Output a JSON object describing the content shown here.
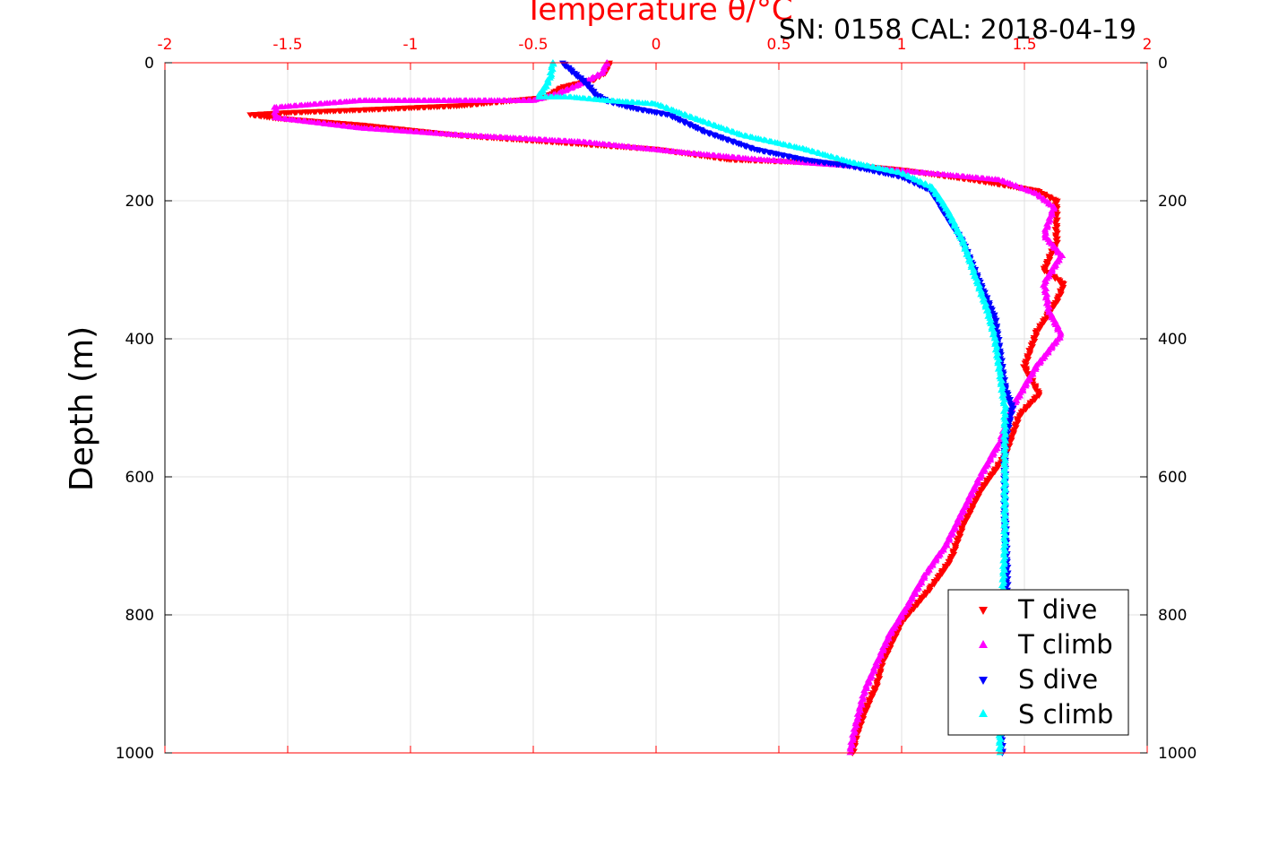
{
  "chart_data": {
    "type": "scatter",
    "title": "SN: 0158  CAL: 2018-04-19",
    "xlabel_top": "Temperature θ/°C",
    "ylabel": "Depth (m)",
    "xlim": [
      -2,
      2
    ],
    "ylim": [
      0,
      1000
    ],
    "y_reversed": true,
    "x_axis_location": "top",
    "x_ticks": [
      "-2",
      "-1.5",
      "-1",
      "-0.5",
      "0",
      "0.5",
      "1",
      "1.5",
      "2"
    ],
    "y_ticks": [
      "0",
      "200",
      "400",
      "600",
      "800",
      "1000"
    ],
    "grid": true,
    "legend_location": "bottom-right",
    "colors": {
      "axis_top": "#ff0000",
      "axis": "#000000",
      "grid": "#e0e0e0"
    },
    "legend": [
      "T dive",
      "T climb",
      "S dive",
      "S climb"
    ],
    "series": [
      {
        "name": "T dive",
        "color": "#ff0000",
        "marker": "triangle-down",
        "x": [
          -0.19,
          -0.21,
          -0.26,
          -0.38,
          -0.45,
          -0.8,
          -1.2,
          -1.5,
          -1.65,
          -1.55,
          -1.2,
          -0.8,
          -0.4,
          0.0,
          0.3,
          0.7,
          1.0,
          1.3,
          1.55,
          1.63,
          1.63,
          1.58,
          1.66,
          1.64,
          1.55,
          1.5,
          1.56,
          1.48,
          1.42,
          1.32,
          1.25,
          1.2,
          1.12,
          1.0,
          0.92,
          0.9,
          0.85,
          0.82,
          0.8
        ],
        "y": [
          0,
          15,
          25,
          35,
          50,
          62,
          68,
          72,
          75,
          80,
          90,
          105,
          115,
          125,
          140,
          145,
          155,
          170,
          185,
          200,
          260,
          300,
          320,
          340,
          390,
          440,
          480,
          510,
          570,
          620,
          670,
          720,
          760,
          810,
          870,
          900,
          940,
          970,
          1000
        ]
      },
      {
        "name": "T climb",
        "color": "#ff00ff",
        "marker": "triangle-up",
        "x": [
          -0.2,
          -0.22,
          -0.3,
          -0.4,
          -0.5,
          -0.8,
          -1.2,
          -1.55,
          -1.55,
          -1.2,
          -0.8,
          -0.3,
          0.1,
          0.4,
          0.8,
          1.1,
          1.4,
          1.55,
          1.62,
          1.58,
          1.65,
          1.58,
          1.6,
          1.65,
          1.55,
          1.45,
          1.4,
          1.32,
          1.25,
          1.18,
          1.1,
          1.02,
          0.95,
          0.9,
          0.85,
          0.82,
          0.8,
          0.79
        ],
        "y": [
          0,
          15,
          30,
          45,
          55,
          55,
          55,
          65,
          80,
          95,
          105,
          115,
          130,
          140,
          150,
          160,
          170,
          190,
          210,
          250,
          280,
          320,
          360,
          395,
          440,
          500,
          550,
          600,
          650,
          700,
          740,
          790,
          830,
          870,
          910,
          950,
          980,
          1000
        ]
      },
      {
        "name": "S dive",
        "color": "#0000ff",
        "marker": "triangle-down",
        "x": [
          -0.38,
          -0.35,
          -0.3,
          -0.27,
          -0.25,
          -0.2,
          -0.1,
          0.05,
          0.2,
          0.4,
          0.6,
          0.8,
          1.0,
          1.12,
          1.18,
          1.25,
          1.32,
          1.38,
          1.4,
          1.42,
          1.45,
          1.42,
          1.42,
          1.43,
          1.42,
          1.41,
          1.4,
          1.41
        ],
        "y": [
          0,
          10,
          25,
          35,
          45,
          55,
          65,
          75,
          100,
          125,
          140,
          150,
          165,
          185,
          220,
          260,
          320,
          370,
          420,
          470,
          500,
          550,
          650,
          750,
          800,
          880,
          950,
          1000
        ]
      },
      {
        "name": "S climb",
        "color": "#00ffff",
        "marker": "triangle-up",
        "x": [
          -0.42,
          -0.43,
          -0.45,
          -0.48,
          -0.35,
          -0.2,
          0.0,
          0.15,
          0.35,
          0.6,
          0.8,
          1.0,
          1.12,
          1.18,
          1.25,
          1.3,
          1.35,
          1.38,
          1.4,
          1.42,
          1.42,
          1.42,
          1.41,
          1.41,
          1.4,
          1.4
        ],
        "y": [
          0,
          20,
          35,
          50,
          50,
          55,
          60,
          80,
          105,
          125,
          145,
          160,
          180,
          210,
          260,
          310,
          360,
          400,
          450,
          500,
          600,
          700,
          780,
          860,
          940,
          1000
        ]
      }
    ]
  }
}
